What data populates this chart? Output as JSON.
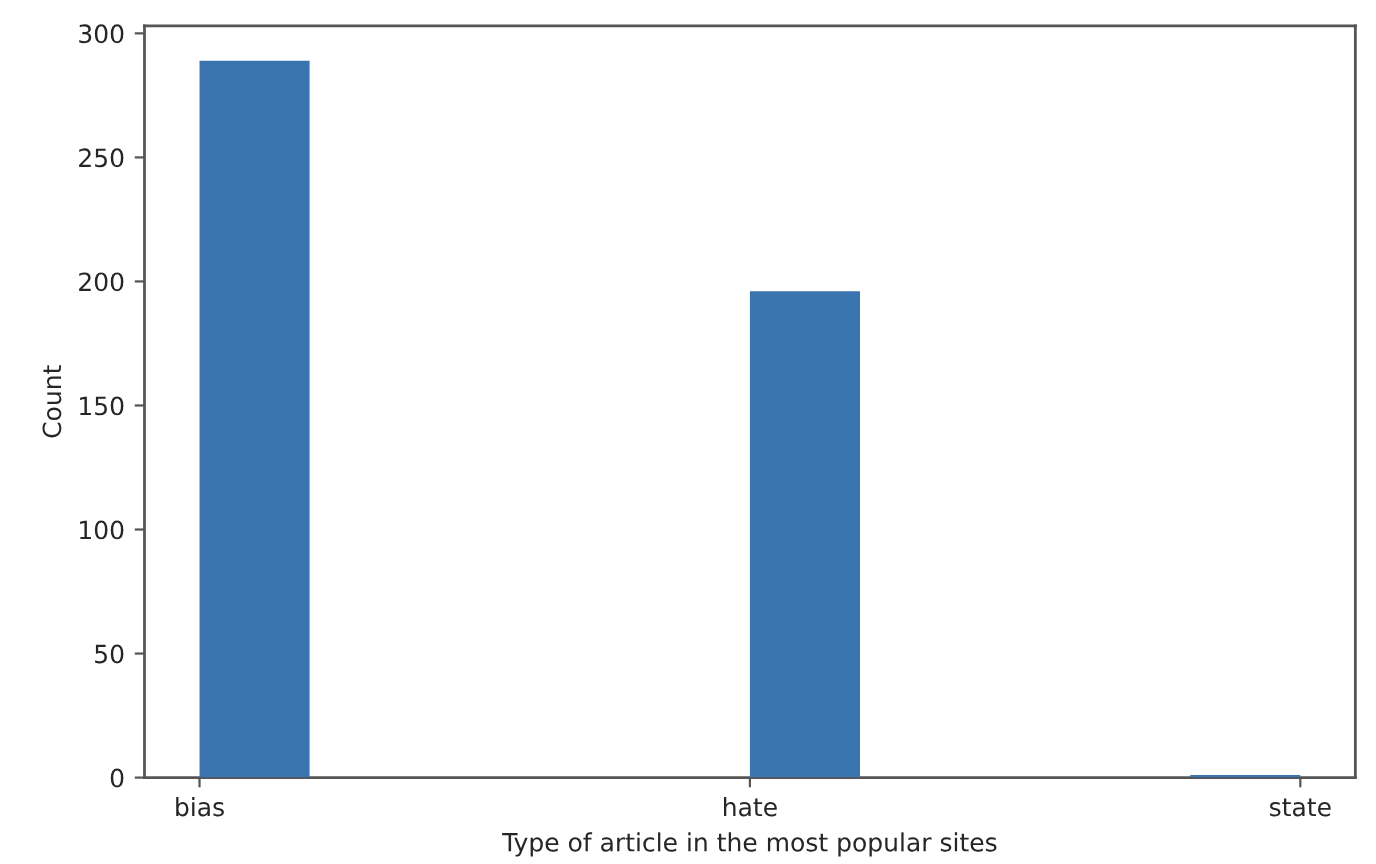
{
  "chart_data": {
    "type": "bar",
    "xlabel": "Type of article in the most popular sites",
    "ylabel": "Count",
    "categories": [
      "bias",
      "hate",
      "state"
    ],
    "values": [
      289,
      196,
      1
    ],
    "color": "#3a75af",
    "ylim": [
      0,
      303
    ],
    "yticks": [
      0,
      50,
      100,
      150,
      200,
      250,
      300
    ],
    "grid": false
  }
}
